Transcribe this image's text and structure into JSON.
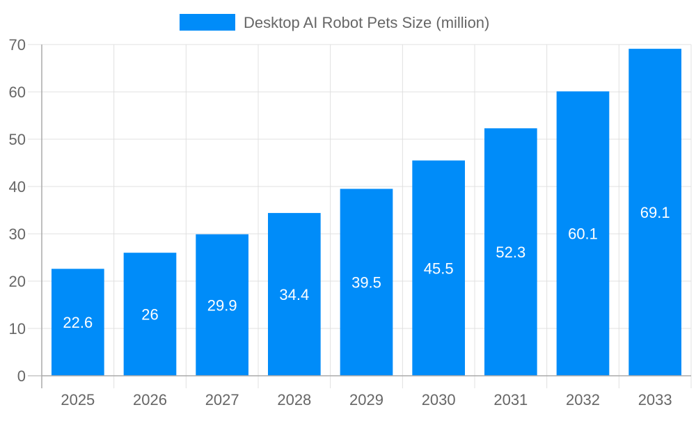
{
  "chart_data": {
    "type": "bar",
    "title": "",
    "xlabel": "",
    "ylabel": "",
    "categories": [
      "2025",
      "2026",
      "2027",
      "2028",
      "2029",
      "2030",
      "2031",
      "2032",
      "2033"
    ],
    "series": [
      {
        "name": "Desktop AI Robot Pets Size (million)",
        "values": [
          22.6,
          26,
          29.9,
          34.4,
          39.5,
          45.5,
          52.3,
          60.1,
          69.1
        ]
      }
    ],
    "ylim": [
      0,
      70
    ],
    "yticks": [
      0,
      10,
      20,
      30,
      40,
      50,
      60,
      70
    ],
    "grid": true,
    "legend": "top",
    "data_labels": "inside-center",
    "colors": {
      "bar": "#008cf9",
      "grid": "#e0e0e0",
      "axis": "#aaaaaa",
      "text": "#666666",
      "label": "#ffffff"
    }
  }
}
